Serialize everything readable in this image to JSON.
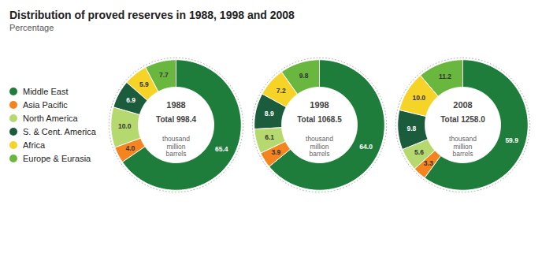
{
  "chart_data": {
    "type": "pie",
    "title": "Distribution of proved reserves in 1988, 1998 and 2008",
    "subtitle": "Percentage",
    "categories": [
      "Middle East",
      "Asia Pacific",
      "North America",
      "S. & Cent. America",
      "Africa",
      "Europe & Eurasia"
    ],
    "colors": [
      "#1e7d3b",
      "#f5841f",
      "#b5d96e",
      "#1a5c3c",
      "#f5d327",
      "#6ab740"
    ],
    "series": [
      {
        "name": "1988",
        "annotations": [
          "Total 998.4",
          "thousand\nmillion\nbarrels"
        ],
        "values": [
          65.4,
          4.0,
          10.0,
          6.9,
          5.9,
          7.7
        ],
        "value_labels": [
          "65.4",
          "4.0",
          "10.0",
          "6.9",
          "5.9",
          "7.7"
        ]
      },
      {
        "name": "1998",
        "annotations": [
          "Total 1068.5",
          "thousand\nmillion\nbarrels"
        ],
        "values": [
          64.0,
          3.9,
          6.1,
          8.9,
          7.2,
          9.8
        ],
        "value_labels": [
          "64.0",
          "3.9",
          "6.1",
          "8.9",
          "7.2",
          "9.8"
        ]
      },
      {
        "name": "2008",
        "annotations": [
          "Total 1258.0",
          "thousand\nmillion\nbarrels"
        ],
        "values": [
          59.9,
          3.3,
          5.6,
          9.8,
          10.0,
          11.2
        ],
        "value_labels": [
          "59.9",
          "3.3",
          "5.6",
          "9.8",
          "10.0",
          "11.2"
        ]
      }
    ],
    "data_labels": true,
    "legend": "left"
  }
}
